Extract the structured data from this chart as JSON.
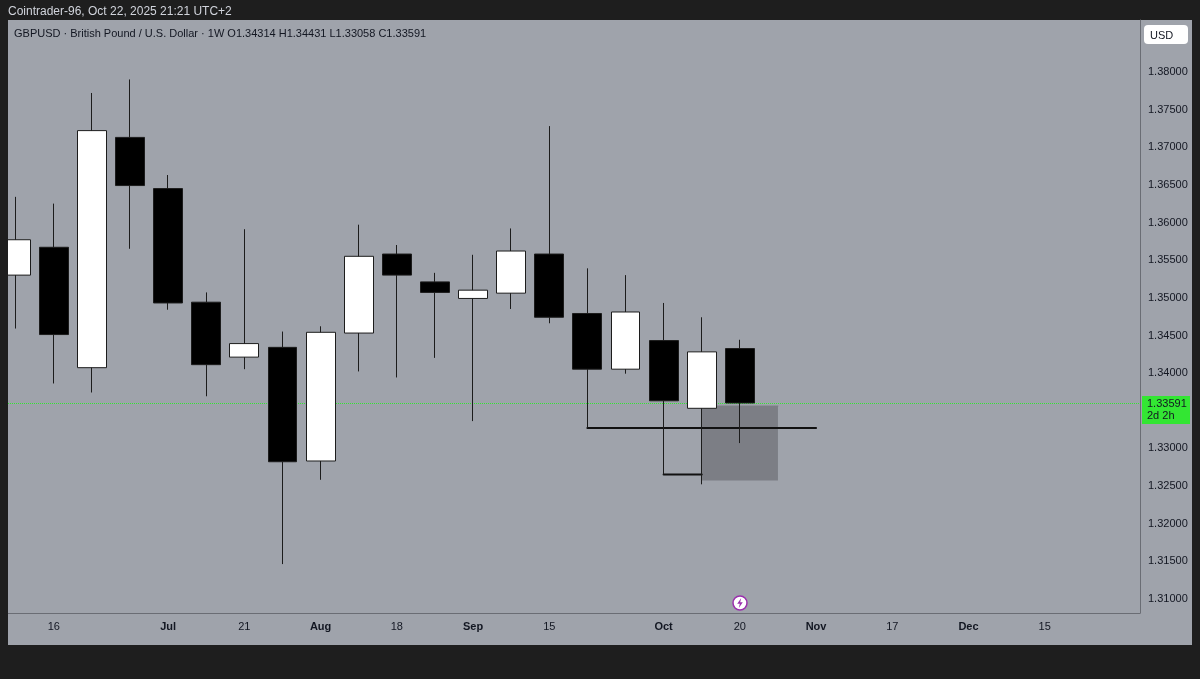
{
  "chart_data": {
    "type": "candlestick",
    "title": "GBPUSD · British Pound / U.S. Dollar · 1W O1.34314 H1.34431 L1.33058 C1.33591",
    "subtitle": "Cointrader-96, Oct 22, 2025 21:21 UTC+2",
    "ylabel": "USD",
    "x": [
      "2025-06-09",
      "2025-06-16",
      "2025-06-23",
      "2025-06-30",
      "2025-07-07",
      "2025-07-14",
      "2025-07-21",
      "2025-07-28",
      "2025-08-04",
      "2025-08-11",
      "2025-08-18",
      "2025-08-25",
      "2025-09-01",
      "2025-09-08",
      "2025-09-15",
      "2025-09-22",
      "2025-09-29",
      "2025-10-06",
      "2025-10-13",
      "2025-10-20"
    ],
    "ohlc": [
      [
        1.3529,
        1.3633,
        1.3458,
        1.3576
      ],
      [
        1.3566,
        1.3624,
        1.3385,
        1.345
      ],
      [
        1.3406,
        1.3771,
        1.3373,
        1.3721
      ],
      [
        1.3712,
        1.3789,
        1.3564,
        1.3648
      ],
      [
        1.3644,
        1.3662,
        1.3483,
        1.3492
      ],
      [
        1.3493,
        1.3506,
        1.3368,
        1.341
      ],
      [
        1.342,
        1.359,
        1.3404,
        1.3438
      ],
      [
        1.3433,
        1.3454,
        1.3145,
        1.3281
      ],
      [
        1.3282,
        1.3461,
        1.3257,
        1.3453
      ],
      [
        1.3452,
        1.3596,
        1.3401,
        1.3554
      ],
      [
        1.3557,
        1.3569,
        1.3393,
        1.3529
      ],
      [
        1.352,
        1.3532,
        1.3419,
        1.3506
      ],
      [
        1.3498,
        1.3556,
        1.3335,
        1.3509
      ],
      [
        1.3505,
        1.3591,
        1.3484,
        1.3561
      ],
      [
        1.3557,
        1.3727,
        1.3465,
        1.3473
      ],
      [
        1.3478,
        1.3538,
        1.3326,
        1.3404
      ],
      [
        1.3404,
        1.3529,
        1.3398,
        1.348
      ],
      [
        1.3442,
        1.3492,
        1.3264,
        1.3362
      ],
      [
        1.3352,
        1.3473,
        1.3251,
        1.3427
      ],
      [
        1.34314,
        1.34431,
        1.33058,
        1.33591
      ]
    ],
    "colors": [
      "#ffffff",
      "#000000",
      "#ffffff",
      "#000000",
      "#000000",
      "#000000",
      "#ffffff",
      "#000000",
      "#ffffff",
      "#ffffff",
      "#000000",
      "#000000",
      "#ffffff",
      "#ffffff",
      "#000000",
      "#000000",
      "#ffffff",
      "#000000",
      "#ffffff",
      "#000000"
    ],
    "series": [
      {
        "type": "line",
        "x": [
          "2025-09-22",
          "2025-11-03"
        ],
        "values": [
          1.3326,
          1.3326
        ],
        "color": "#111111"
      },
      {
        "type": "line",
        "x": [
          "2025-10-06",
          "2025-10-13"
        ],
        "values": [
          1.3264,
          1.3264
        ],
        "color": "#111111"
      },
      {
        "type": "line",
        "x": [
          "2025-10-13",
          "2025-10-27"
        ],
        "values": [
          1.3355,
          1.3355
        ],
        "lower": [
          1.3256,
          1.3256
        ],
        "upper": [
          1.3355,
          1.3355
        ],
        "color": "#7c7e85"
      }
    ],
    "xlim": [
      "2025-06-07T14:00",
      "2026-01-01T12:00"
    ],
    "xticks": [
      {
        "value": "2025-06-16",
        "label": "16"
      },
      {
        "value": "2025-07-07",
        "label": "Jul"
      },
      {
        "value": "2025-07-21",
        "label": "21"
      },
      {
        "value": "2025-08-04",
        "label": "Aug"
      },
      {
        "value": "2025-08-18",
        "label": "18"
      },
      {
        "value": "2025-09-01",
        "label": "Sep"
      },
      {
        "value": "2025-09-15",
        "label": "15"
      },
      {
        "value": "2025-10-06",
        "label": "Oct"
      },
      {
        "value": "2025-10-20",
        "label": "20"
      },
      {
        "value": "2025-11-03",
        "label": "Nov"
      },
      {
        "value": "2025-11-17",
        "label": "17"
      },
      {
        "value": "2025-12-01",
        "label": "Dec"
      },
      {
        "value": "2025-12-15",
        "label": "15"
      }
    ],
    "ylim": [
      1.308,
      1.3868
    ],
    "yticks": [
      {
        "value": 1.31,
        "label": "1.31000"
      },
      {
        "value": 1.315,
        "label": "1.31500"
      },
      {
        "value": 1.32,
        "label": "1.32000"
      },
      {
        "value": 1.325,
        "label": "1.32500"
      },
      {
        "value": 1.33,
        "label": "1.33000"
      },
      {
        "value": 1.34,
        "label": "1.34000"
      },
      {
        "value": 1.345,
        "label": "1.34500"
      },
      {
        "value": 1.35,
        "label": "1.35000"
      },
      {
        "value": 1.355,
        "label": "1.35500"
      },
      {
        "value": 1.36,
        "label": "1.36000"
      },
      {
        "value": 1.365,
        "label": "1.36500"
      },
      {
        "value": 1.37,
        "label": "1.37000"
      },
      {
        "value": 1.375,
        "label": "1.37500"
      },
      {
        "value": 1.38,
        "label": "1.38000"
      }
    ],
    "ref_lines": [
      {
        "axis": "y",
        "value": 1.33591,
        "label": "1.33591",
        "color": "#33e633",
        "line_style": "dotted"
      }
    ],
    "annotations": [
      "2d 2h"
    ],
    "marker": "none"
  }
}
